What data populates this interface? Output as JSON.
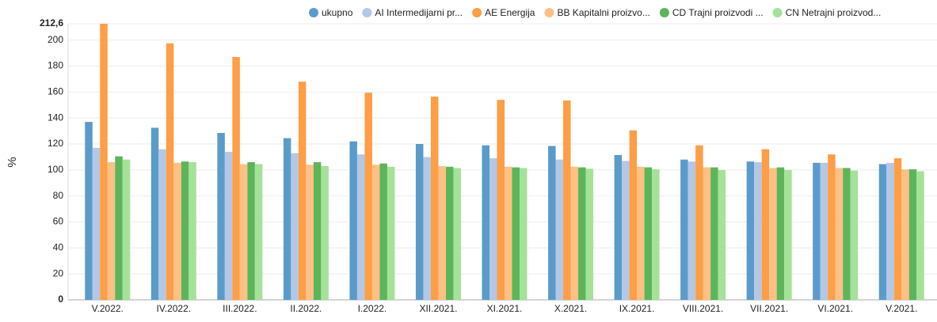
{
  "chart_data": {
    "type": "bar",
    "y_label": "%",
    "categories": [
      "V.2022.",
      "IV.2022.",
      "III.2022.",
      "II.2022.",
      "I.2022.",
      "XII.2021.",
      "XI.2021.",
      "X.2021.",
      "IX.2021.",
      "VIII.2021.",
      "VII.2021.",
      "VI.2021.",
      "V.2021."
    ],
    "series": [
      {
        "name": "ukupno",
        "color": "#5b9bc9",
        "values": [
          137,
          132.5,
          128.5,
          124.5,
          122,
          120,
          119,
          118.5,
          111.5,
          108,
          106.5,
          105.5,
          104.5
        ]
      },
      {
        "name": "AI Intermedijarni pr...",
        "color": "#b3c8e6",
        "values": [
          117,
          116,
          114,
          113,
          112,
          110,
          109,
          108,
          107,
          106.5,
          106,
          105.5,
          105.5
        ]
      },
      {
        "name": "AE Energija",
        "color": "#fe9e47",
        "values": [
          212.6,
          197.5,
          187,
          168,
          159.5,
          156.5,
          154,
          153.5,
          130.5,
          119,
          116,
          112,
          109
        ]
      },
      {
        "name": "BB Kapitalni proizvo...",
        "color": "#fec085",
        "values": [
          106,
          105.5,
          104.5,
          104,
          104,
          103,
          102.5,
          102.5,
          102.5,
          102,
          101.5,
          101.5,
          100.5
        ]
      },
      {
        "name": "CD Trajni proizvodi ...",
        "color": "#5cb55b",
        "values": [
          110.5,
          106.5,
          106,
          106,
          105,
          102.5,
          102,
          102,
          102,
          102,
          102,
          101.5,
          100.5
        ]
      },
      {
        "name": "CN Netrajni proizvod...",
        "color": "#a6e199",
        "values": [
          108,
          106,
          104.5,
          103,
          102.5,
          101.5,
          101.5,
          101,
          100.5,
          100,
          100,
          99.5,
          99
        ]
      }
    ],
    "ylim": [
      0,
      212.6
    ],
    "yticks": [
      0,
      20,
      40,
      60,
      80,
      100,
      120,
      140,
      160,
      180,
      200,
      {
        "value": 212.6,
        "label": "212,6"
      }
    ],
    "grid": true
  }
}
